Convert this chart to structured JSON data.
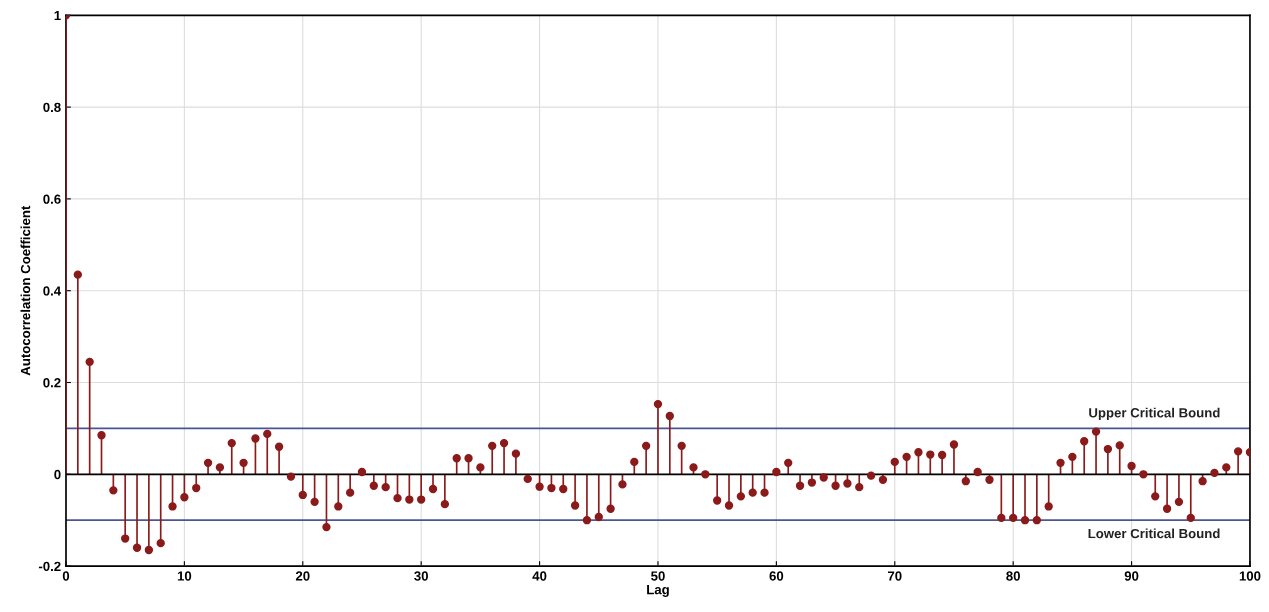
{
  "chart_data": {
    "type": "lollipop",
    "xlabel": "Lag",
    "ylabel": "Autocorrelation Coefficient",
    "x": [
      0,
      1,
      2,
      3,
      4,
      5,
      6,
      7,
      8,
      9,
      10,
      11,
      12,
      13,
      14,
      15,
      16,
      17,
      18,
      19,
      20,
      21,
      22,
      23,
      24,
      25,
      26,
      27,
      28,
      29,
      30,
      31,
      32,
      33,
      34,
      35,
      36,
      37,
      38,
      39,
      40,
      41,
      42,
      43,
      44,
      45,
      46,
      47,
      48,
      49,
      50,
      51,
      52,
      53,
      54,
      55,
      56,
      57,
      58,
      59,
      60,
      61,
      62,
      63,
      64,
      65,
      66,
      67,
      68,
      69,
      70,
      71,
      72,
      73,
      74,
      75,
      76,
      77,
      78,
      79,
      80,
      81,
      82,
      83,
      84,
      85,
      86,
      87,
      88,
      89,
      90,
      91,
      92,
      93,
      94,
      95,
      96,
      97,
      98,
      99,
      100
    ],
    "series": [
      {
        "color": "#8b1a1a",
        "values": [
          1,
          0.435,
          0.245,
          0.085,
          -0.035,
          -0.14,
          -0.16,
          -0.165,
          -0.15,
          -0.07,
          -0.05,
          -0.03,
          0.025,
          0.015,
          0.068,
          0.025,
          0.078,
          0.088,
          0.06,
          -0.005,
          -0.045,
          -0.06,
          -0.115,
          -0.07,
          -0.04,
          0.005,
          -0.025,
          -0.028,
          -0.052,
          -0.055,
          -0.055,
          -0.032,
          -0.065,
          0.035,
          0.035,
          0.015,
          0.062,
          0.068,
          0.045,
          -0.01,
          -0.027,
          -0.03,
          -0.032,
          -0.068,
          -0.1,
          -0.093,
          -0.075,
          -0.022,
          0.027,
          0.062,
          0.153,
          0.127,
          0.062,
          0.015,
          0.0,
          -0.057,
          -0.068,
          -0.048,
          -0.04,
          -0.04,
          0.005,
          0.025,
          -0.025,
          -0.018,
          -0.007,
          -0.025,
          -0.02,
          -0.028,
          -0.003,
          -0.012,
          0.027,
          0.038,
          0.048,
          0.043,
          0.042,
          0.065,
          -0.015,
          0.005,
          -0.012,
          -0.095,
          -0.095,
          -0.1,
          -0.1,
          -0.07,
          0.025,
          0.038,
          0.072,
          0.093,
          0.055,
          0.063,
          0.018,
          0.0,
          -0.048,
          -0.075,
          -0.06,
          -0.095,
          -0.015,
          0.003,
          0.015,
          0.05,
          0.048
        ]
      }
    ],
    "xlim": [
      0,
      100
    ],
    "xticks": [
      0,
      10,
      20,
      30,
      40,
      50,
      60,
      70,
      80,
      90,
      100
    ],
    "ylim": [
      -0.2,
      1
    ],
    "yticks": [
      -0.2,
      0,
      0.2,
      0.4,
      0.6,
      0.8,
      1
    ],
    "ref_lines": [
      {
        "axis": "y",
        "value": 0.1,
        "label": "Upper Critical Bound",
        "color": "#4a5694"
      },
      {
        "axis": "y",
        "value": -0.1,
        "label": "Lower Critical Bound",
        "color": "#4a5694"
      }
    ],
    "grid": true,
    "marker": "circle"
  }
}
